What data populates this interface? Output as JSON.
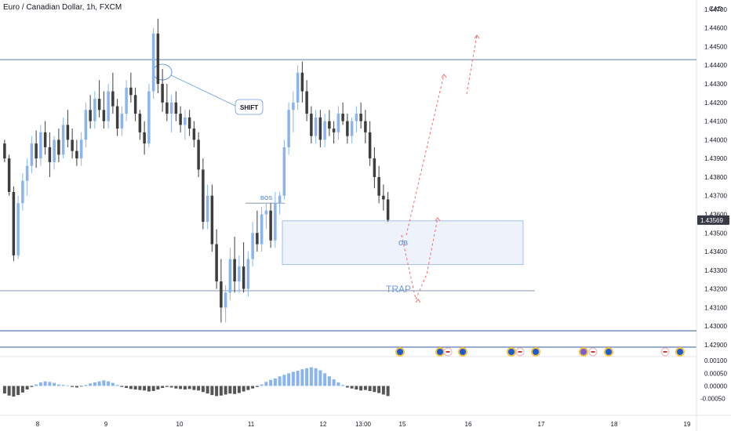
{
  "header": {
    "title": "Euro / Canadian Dollar, 1h, FXCM",
    "currency": "CAD"
  },
  "colors": {
    "up": "#8ab4f0",
    "down": "#3d3d3d",
    "hline": "#5a7bb5",
    "annot": "#6b9be0",
    "dash": "#f06a6a",
    "osc_up": "#8ab4f0",
    "osc_down": "#555555"
  },
  "chart_data": {
    "type": "candlestick",
    "symbol": "EURCAD",
    "timeframe": "1h",
    "ylim": [
      1.429,
      1.4475
    ],
    "y_ticks": [
      "1.44700",
      "1.44600",
      "1.44500",
      "1.44400",
      "1.44300",
      "1.44200",
      "1.44100",
      "1.44000",
      "1.43900",
      "1.43800",
      "1.43700",
      "1.43600",
      "1.43500",
      "1.43400",
      "1.43300",
      "1.43200",
      "1.43100",
      "1.43000",
      "1.42900"
    ],
    "last_price_label": "1.43569",
    "last_price": 1.43569,
    "x_ticks": [
      "8",
      "9",
      "10",
      "11",
      "12",
      "13:00",
      "15",
      "16",
      "17",
      "18",
      "19"
    ],
    "ohlc": [
      [
        1.4398,
        1.44,
        1.4388,
        1.439
      ],
      [
        1.439,
        1.4392,
        1.437,
        1.4372
      ],
      [
        1.4372,
        1.4375,
        1.4335,
        1.4338
      ],
      [
        1.4338,
        1.437,
        1.4336,
        1.4366
      ],
      [
        1.4366,
        1.4382,
        1.4362,
        1.4378
      ],
      [
        1.4378,
        1.439,
        1.437,
        1.4386
      ],
      [
        1.4386,
        1.4402,
        1.4382,
        1.4398
      ],
      [
        1.4398,
        1.4405,
        1.4385,
        1.439
      ],
      [
        1.439,
        1.4408,
        1.4386,
        1.4404
      ],
      [
        1.4404,
        1.441,
        1.4392,
        1.4396
      ],
      [
        1.4396,
        1.4404,
        1.438,
        1.4388
      ],
      [
        1.4388,
        1.4402,
        1.4384,
        1.44
      ],
      [
        1.44,
        1.4406,
        1.4388,
        1.4392
      ],
      [
        1.4392,
        1.4412,
        1.439,
        1.4408
      ],
      [
        1.4408,
        1.4416,
        1.4396,
        1.44
      ],
      [
        1.44,
        1.4406,
        1.439,
        1.4394
      ],
      [
        1.4394,
        1.44,
        1.4386,
        1.439
      ],
      [
        1.439,
        1.4404,
        1.4386,
        1.44
      ],
      [
        1.44,
        1.442,
        1.4396,
        1.4416
      ],
      [
        1.4416,
        1.4424,
        1.4406,
        1.441
      ],
      [
        1.441,
        1.4426,
        1.4406,
        1.4422
      ],
      [
        1.4422,
        1.4432,
        1.4412,
        1.4416
      ],
      [
        1.4416,
        1.4426,
        1.4406,
        1.441
      ],
      [
        1.441,
        1.443,
        1.4406,
        1.4426
      ],
      [
        1.4426,
        1.4436,
        1.4414,
        1.4418
      ],
      [
        1.4418,
        1.4422,
        1.4402,
        1.4406
      ],
      [
        1.4406,
        1.4418,
        1.4402,
        1.4414
      ],
      [
        1.4414,
        1.4432,
        1.441,
        1.4428
      ],
      [
        1.4428,
        1.4436,
        1.442,
        1.4424
      ],
      [
        1.4424,
        1.4428,
        1.441,
        1.4414
      ],
      [
        1.4414,
        1.4416,
        1.44,
        1.4404
      ],
      [
        1.4404,
        1.441,
        1.4392,
        1.4398
      ],
      [
        1.4398,
        1.443,
        1.4396,
        1.4426
      ],
      [
        1.4426,
        1.446,
        1.4422,
        1.4457
      ],
      [
        1.4457,
        1.4465,
        1.4425,
        1.443
      ],
      [
        1.443,
        1.4438,
        1.4415,
        1.442
      ],
      [
        1.442,
        1.443,
        1.441,
        1.4414
      ],
      [
        1.4414,
        1.4424,
        1.4404,
        1.442
      ],
      [
        1.442,
        1.4426,
        1.441,
        1.4414
      ],
      [
        1.4414,
        1.4418,
        1.4404,
        1.4408
      ],
      [
        1.4408,
        1.4416,
        1.44,
        1.4412
      ],
      [
        1.4412,
        1.4416,
        1.4402,
        1.4406
      ],
      [
        1.4406,
        1.441,
        1.4396,
        1.44
      ],
      [
        1.44,
        1.4404,
        1.438,
        1.4384
      ],
      [
        1.4384,
        1.439,
        1.4352,
        1.4356
      ],
      [
        1.4356,
        1.4376,
        1.4352,
        1.437
      ],
      [
        1.437,
        1.4376,
        1.434,
        1.4344
      ],
      [
        1.4344,
        1.4352,
        1.432,
        1.4324
      ],
      [
        1.4324,
        1.4336,
        1.4302,
        1.431
      ],
      [
        1.431,
        1.4322,
        1.4302,
        1.4318
      ],
      [
        1.4318,
        1.4342,
        1.4314,
        1.4336
      ],
      [
        1.4336,
        1.4348,
        1.4318,
        1.4324
      ],
      [
        1.4324,
        1.4338,
        1.4318,
        1.4332
      ],
      [
        1.4332,
        1.4345,
        1.4318,
        1.432
      ],
      [
        1.432,
        1.434,
        1.4316,
        1.4336
      ],
      [
        1.4336,
        1.4356,
        1.4332,
        1.435
      ],
      [
        1.435,
        1.4362,
        1.434,
        1.4344
      ],
      [
        1.4344,
        1.4364,
        1.434,
        1.436
      ],
      [
        1.436,
        1.4366,
        1.4352,
        1.4362
      ],
      [
        1.4362,
        1.4366,
        1.4342,
        1.4346
      ],
      [
        1.4346,
        1.4372,
        1.4342,
        1.4366
      ],
      [
        1.4366,
        1.4372,
        1.436,
        1.437
      ],
      [
        1.437,
        1.44,
        1.4368,
        1.4396
      ],
      [
        1.4396,
        1.442,
        1.4392,
        1.4416
      ],
      [
        1.4416,
        1.4426,
        1.4404,
        1.442
      ],
      [
        1.442,
        1.444,
        1.4416,
        1.4436
      ],
      [
        1.4436,
        1.4442,
        1.442,
        1.4426
      ],
      [
        1.4426,
        1.4432,
        1.441,
        1.4414
      ],
      [
        1.4414,
        1.4418,
        1.4398,
        1.4402
      ],
      [
        1.4402,
        1.4416,
        1.4398,
        1.4412
      ],
      [
        1.4412,
        1.4416,
        1.4396,
        1.44
      ],
      [
        1.44,
        1.4414,
        1.4396,
        1.441
      ],
      [
        1.441,
        1.4416,
        1.4402,
        1.4406
      ],
      [
        1.4406,
        1.441,
        1.4398,
        1.4404
      ],
      [
        1.4404,
        1.4418,
        1.44,
        1.4414
      ],
      [
        1.4414,
        1.442,
        1.4408,
        1.441
      ],
      [
        1.441,
        1.4414,
        1.4398,
        1.4402
      ],
      [
        1.4402,
        1.4412,
        1.4398,
        1.441
      ],
      [
        1.441,
        1.4418,
        1.4404,
        1.4414
      ],
      [
        1.4414,
        1.442,
        1.4406,
        1.441
      ],
      [
        1.441,
        1.4416,
        1.4398,
        1.4404
      ],
      [
        1.4404,
        1.441,
        1.4386,
        1.439
      ],
      [
        1.439,
        1.4396,
        1.4374,
        1.438
      ],
      [
        1.438,
        1.4386,
        1.4366,
        1.437
      ],
      [
        1.437,
        1.4376,
        1.4362,
        1.4368
      ],
      [
        1.4368,
        1.4372,
        1.4356,
        1.4357
      ]
    ],
    "oscillator": {
      "ylim": [
        -0.0011,
        0.0011
      ],
      "y_ticks": [
        "0.00100",
        "0.00050",
        "0.00000",
        "-0.00050"
      ],
      "values": [
        -0.0003,
        -0.00038,
        -0.00042,
        -0.00036,
        -0.00026,
        -0.00014,
        -4e-05,
        6e-05,
        0.00014,
        0.00018,
        0.00016,
        0.00012,
        6e-05,
        4e-05,
        2e-05,
        -4e-05,
        -6e-05,
        -2e-05,
        4e-05,
        0.0001,
        0.00014,
        0.00018,
        0.00022,
        0.00018,
        0.00012,
        4e-05,
        -4e-05,
        -8e-05,
        -0.00012,
        -0.00014,
        -0.00016,
        -0.00018,
        -0.00022,
        -0.0002,
        -0.00014,
        -8e-05,
        -4e-05,
        -6e-05,
        -0.0001,
        -0.00012,
        -0.00014,
        -0.00012,
        -0.00016,
        -0.00018,
        -0.00024,
        -0.0003,
        -0.00036,
        -0.0004,
        -0.00038,
        -0.00034,
        -0.0003,
        -0.00032,
        -0.00028,
        -0.00022,
        -0.00016,
        -0.0001,
        -4e-05,
        6e-05,
        0.00016,
        0.00024,
        0.0003,
        0.00038,
        0.00044,
        0.0005,
        0.00056,
        0.0006,
        0.00066,
        0.0007,
        0.00074,
        0.0007,
        0.00062,
        0.0005,
        0.00038,
        0.00026,
        0.00014,
        4e-05,
        -6e-05,
        -0.0001,
        -0.00014,
        -0.00018,
        -0.00016,
        -0.0002,
        -0.00024,
        -0.00028,
        -0.00034,
        -0.0004
      ]
    },
    "annotations": {
      "shift_label": "SHIFT",
      "bos_label": "BOS",
      "ob_label": "OB",
      "trap_label": "TRAP",
      "resistance_level": 1.4443,
      "support_level": 1.4319,
      "bos_level": 1.4366,
      "order_block": {
        "top": 1.43565,
        "bottom": 1.4333
      },
      "bottom_band_level": 1.42975
    }
  }
}
